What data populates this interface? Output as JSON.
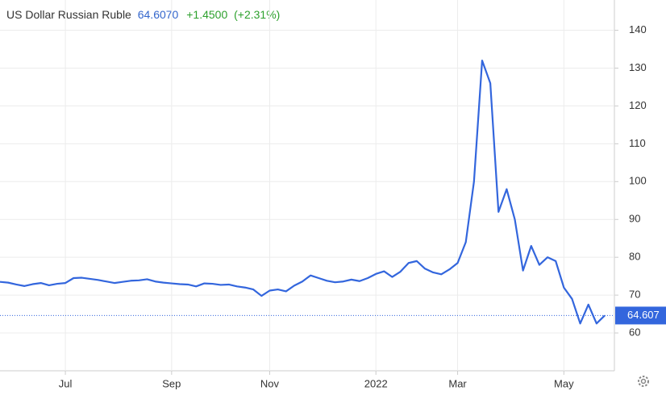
{
  "chart_data": {
    "type": "line",
    "title": "US Dollar Russian Ruble",
    "last_price": "64.6070",
    "change": "+1.4500",
    "change_pct": "(+2.31%)",
    "price_tag": "64.607",
    "categories": [
      null,
      null,
      null,
      null,
      null,
      null,
      null,
      null,
      "Jul",
      null,
      null,
      null,
      null,
      null,
      null,
      null,
      null,
      null,
      null,
      null,
      null,
      "Sep",
      null,
      null,
      null,
      null,
      null,
      null,
      null,
      null,
      null,
      null,
      null,
      "Nov",
      null,
      null,
      null,
      null,
      null,
      null,
      null,
      null,
      null,
      null,
      null,
      null,
      "2022",
      null,
      null,
      null,
      null,
      null,
      null,
      null,
      null,
      null,
      "Mar",
      null,
      null,
      null,
      null,
      null,
      null,
      null,
      null,
      null,
      null,
      null,
      null,
      "May",
      null,
      null,
      null,
      null,
      null
    ],
    "series": [
      {
        "name": "US Dollar Russian Ruble",
        "color": "#3366dd",
        "values": [
          73.5,
          73.3,
          72.8,
          72.4,
          72.9,
          73.2,
          72.6,
          73.0,
          73.2,
          74.5,
          74.6,
          74.3,
          74.0,
          73.6,
          73.2,
          73.5,
          73.8,
          73.9,
          74.2,
          73.6,
          73.3,
          73.1,
          72.9,
          72.8,
          72.3,
          73.1,
          73.0,
          72.7,
          72.8,
          72.3,
          72.0,
          71.5,
          69.8,
          71.2,
          71.5,
          71.0,
          72.5,
          73.6,
          75.2,
          74.5,
          73.8,
          73.4,
          73.6,
          74.1,
          73.7,
          74.5,
          75.6,
          76.3,
          74.8,
          76.2,
          78.5,
          79.0,
          77.0,
          76.0,
          75.5,
          76.8,
          78.5,
          84.0,
          100,
          132,
          126,
          92,
          98,
          90,
          76.5,
          83,
          78,
          80,
          79,
          72,
          69,
          62.5,
          67.5,
          62.5,
          64.607
        ]
      }
    ],
    "ylim": [
      50,
      148
    ],
    "yticks": [
      60,
      70,
      80,
      90,
      100,
      110,
      120,
      130,
      140
    ],
    "grid": true
  }
}
